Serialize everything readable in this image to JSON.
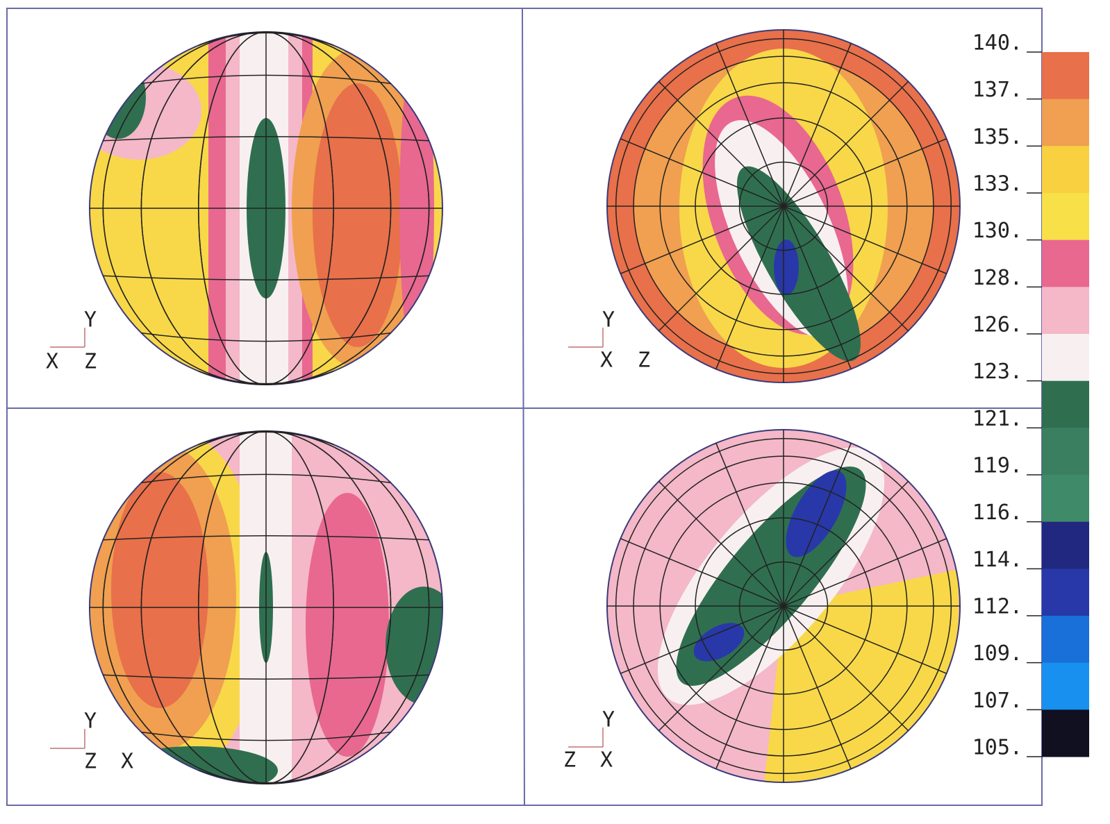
{
  "panels": [
    {
      "triad": {
        "up": "Y",
        "left": "X",
        "right": "Z"
      }
    },
    {
      "triad": {
        "up": "Y",
        "left": "X",
        "right": "Z"
      }
    },
    {
      "triad": {
        "up": "Y",
        "left": "Z",
        "right": "X"
      }
    },
    {
      "triad": {
        "up": "Y",
        "left": "Z",
        "right": "X"
      }
    }
  ],
  "colorbar": {
    "ticks": [
      {
        "value": 140,
        "label": "140."
      },
      {
        "value": 137,
        "label": "137."
      },
      {
        "value": 135,
        "label": "135."
      },
      {
        "value": 133,
        "label": "133."
      },
      {
        "value": 130,
        "label": "130."
      },
      {
        "value": 128,
        "label": "128."
      },
      {
        "value": 126,
        "label": "126."
      },
      {
        "value": 123,
        "label": "123."
      },
      {
        "value": 121,
        "label": "121."
      },
      {
        "value": 119,
        "label": "119."
      },
      {
        "value": 116,
        "label": "116."
      },
      {
        "value": 114,
        "label": "114."
      },
      {
        "value": 112,
        "label": "112."
      },
      {
        "value": 109,
        "label": "109."
      },
      {
        "value": 107,
        "label": "107."
      },
      {
        "value": 105,
        "label": "105."
      }
    ],
    "colors": [
      "#e8704a",
      "#f0a050",
      "#f8d040",
      "#f8e048",
      "#e86890",
      "#f4b8c8",
      "#f8f0f0",
      "#2f6f50",
      "#3a8060",
      "#3f8a68",
      "#202880",
      "#2838a8",
      "#1870d8",
      "#1890f0",
      "#101020"
    ]
  }
}
